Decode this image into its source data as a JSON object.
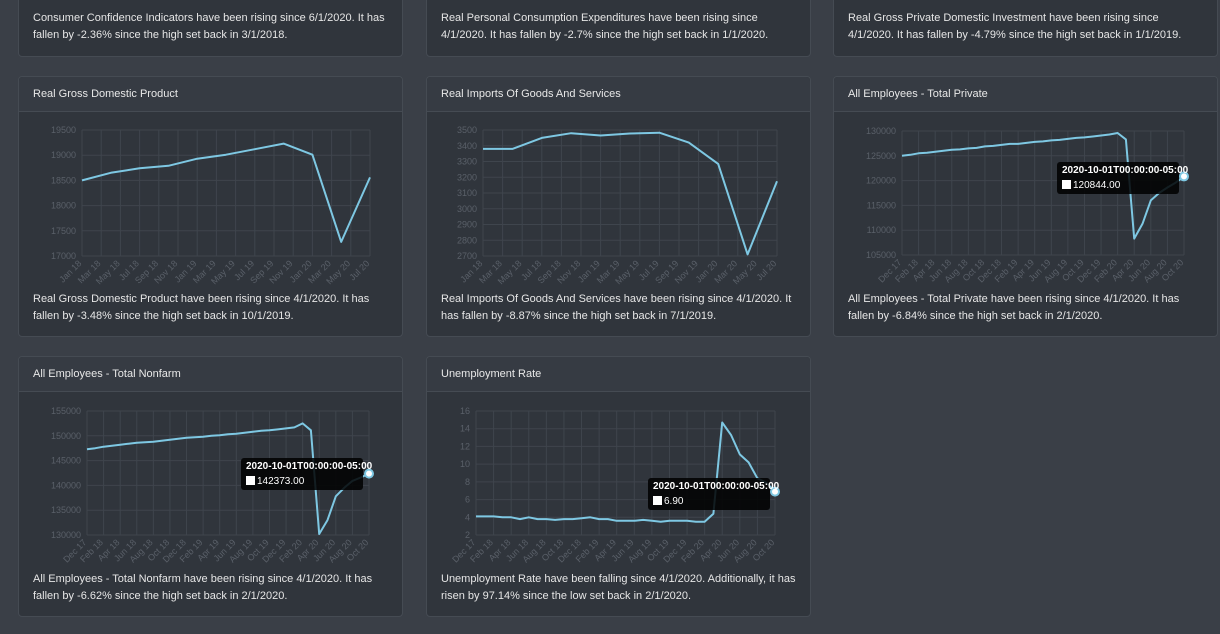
{
  "top_cards": [
    {
      "description": "Consumer Confidence Indicators have been rising since 6/1/2020. It has fallen by -2.36% since the high set back in 3/1/2018."
    },
    {
      "description": "Real Personal Consumption Expenditures have been rising since 4/1/2020. It has fallen by -2.7% since the high set back in 1/1/2020."
    },
    {
      "description": "Real Gross Private Domestic Investment have been rising since 4/1/2020. It has fallen by -4.79% since the high set back in 1/1/2019."
    }
  ],
  "chart_data": [
    {
      "type": "line",
      "title": "Real Gross Domestic Product",
      "description": "Real Gross Domestic Product have been rising since 4/1/2020. It has fallen by -3.48% since the high set back in 10/1/2019.",
      "x": [
        "Jan 18",
        "Apr 18",
        "Jul 18",
        "Oct 18",
        "Jan 19",
        "Apr 19",
        "Jul 19",
        "Oct 19",
        "Jan 20",
        "Apr 20",
        "Jul 20"
      ],
      "values": [
        18500,
        18650,
        18740,
        18790,
        18930,
        19010,
        19120,
        19230,
        19010,
        17280,
        18560
      ],
      "color": "#7ec8e3",
      "ylim": [
        17000,
        19500
      ],
      "yticks": [
        17000,
        17500,
        18000,
        18500,
        19000,
        19500
      ],
      "xticks": [
        "Jan 18",
        "Mar 18",
        "May 18",
        "Jul 18",
        "Sep 18",
        "Nov 18",
        "Jan 19",
        "Mar 19",
        "May 19",
        "Jul 19",
        "Sep 19",
        "Nov 19",
        "Jan 20",
        "Mar 20",
        "May 20",
        "Jul 20"
      ],
      "grid": true
    },
    {
      "type": "line",
      "title": "Real Imports Of Goods And Services",
      "description": "Real Imports Of Goods And Services have been rising since 4/1/2020. It has fallen by -8.87% since the high set back in 7/1/2019.",
      "x": [
        "Jan 18",
        "Apr 18",
        "Jul 18",
        "Oct 18",
        "Jan 19",
        "Apr 19",
        "Jul 19",
        "Oct 19",
        "Jan 20",
        "Apr 20",
        "Jul 20"
      ],
      "values": [
        3380,
        3380,
        3450,
        3480,
        3465,
        3478,
        3483,
        3420,
        3285,
        2710,
        3175
      ],
      "color": "#7ec8e3",
      "ylim": [
        2700,
        3500
      ],
      "yticks": [
        2700,
        2800,
        2900,
        3000,
        3100,
        3200,
        3300,
        3400,
        3500
      ],
      "xticks": [
        "Jan 18",
        "Mar 18",
        "May 18",
        "Jul 18",
        "Sep 18",
        "Nov 18",
        "Jan 19",
        "Mar 19",
        "May 19",
        "Jul 19",
        "Sep 19",
        "Nov 19",
        "Jan 20",
        "Mar 20",
        "May 20",
        "Jul 20"
      ],
      "grid": true
    },
    {
      "type": "line",
      "title": "All Employees - Total Private",
      "description": "All Employees - Total Private have been rising since 4/1/2020. It has fallen by -6.84% since the high set back in 2/1/2020.",
      "x": [
        "Dec 17",
        "Jan 18",
        "Feb 18",
        "Mar 18",
        "Apr 18",
        "May 18",
        "Jun 18",
        "Jul 18",
        "Aug 18",
        "Sep 18",
        "Oct 18",
        "Nov 18",
        "Dec 18",
        "Jan 19",
        "Feb 19",
        "Mar 19",
        "Apr 19",
        "May 19",
        "Jun 19",
        "Jul 19",
        "Aug 19",
        "Sep 19",
        "Oct 19",
        "Nov 19",
        "Dec 19",
        "Jan 20",
        "Feb 20",
        "Mar 20",
        "Apr 20",
        "May 20",
        "Jun 20",
        "Jul 20",
        "Aug 20",
        "Sep 20",
        "Oct 20"
      ],
      "values": [
        125000,
        125200,
        125500,
        125600,
        125800,
        126000,
        126200,
        126300,
        126500,
        126600,
        126900,
        127000,
        127200,
        127400,
        127400,
        127600,
        127800,
        127900,
        128100,
        128200,
        128400,
        128600,
        128700,
        128900,
        129100,
        129300,
        129600,
        128300,
        108300,
        111300,
        116000,
        117500,
        118600,
        119600,
        120844
      ],
      "color": "#7ec8e3",
      "ylim": [
        105000,
        130000
      ],
      "yticks": [
        105000,
        110000,
        115000,
        120000,
        125000,
        130000
      ],
      "xticks": [
        "Dec 17",
        "Feb 18",
        "Apr 18",
        "Jun 18",
        "Aug 18",
        "Oct 18",
        "Dec 18",
        "Feb 19",
        "Apr 19",
        "Jun 19",
        "Aug 19",
        "Oct 19",
        "Dec 19",
        "Feb 20",
        "Apr 20",
        "Jun 20",
        "Aug 20",
        "Oct 20"
      ],
      "grid": true,
      "tooltip": {
        "label": "2020-10-01T00:00:00-05:00",
        "text": "120844.00"
      }
    },
    {
      "type": "line",
      "title": "All Employees - Total Nonfarm",
      "description": "All Employees - Total Nonfarm have been rising since 4/1/2020. It has fallen by -6.62% since the high set back in 2/1/2020.",
      "x": [
        "Dec 17",
        "Jan 18",
        "Feb 18",
        "Mar 18",
        "Apr 18",
        "May 18",
        "Jun 18",
        "Jul 18",
        "Aug 18",
        "Sep 18",
        "Oct 18",
        "Nov 18",
        "Dec 18",
        "Jan 19",
        "Feb 19",
        "Mar 19",
        "Apr 19",
        "May 19",
        "Jun 19",
        "Jul 19",
        "Aug 19",
        "Sep 19",
        "Oct 19",
        "Nov 19",
        "Dec 19",
        "Jan 20",
        "Feb 20",
        "Mar 20",
        "Apr 20",
        "May 20",
        "Jun 20",
        "Jul 20",
        "Aug 20",
        "Sep 20",
        "Oct 20"
      ],
      "values": [
        147300,
        147500,
        147800,
        148000,
        148200,
        148400,
        148600,
        148700,
        148800,
        149000,
        149200,
        149400,
        149600,
        149700,
        149800,
        150000,
        150100,
        150300,
        150400,
        150600,
        150800,
        151000,
        151100,
        151300,
        151500,
        151700,
        152500,
        151100,
        130200,
        133000,
        137800,
        139500,
        140900,
        141600,
        142373
      ],
      "color": "#7ec8e3",
      "ylim": [
        130000,
        155000
      ],
      "yticks": [
        130000,
        135000,
        140000,
        145000,
        150000,
        155000
      ],
      "xticks": [
        "Dec 17",
        "Feb 18",
        "Apr 18",
        "Jun 18",
        "Aug 18",
        "Oct 18",
        "Dec 18",
        "Feb 19",
        "Apr 19",
        "Jun 19",
        "Aug 19",
        "Oct 19",
        "Dec 19",
        "Feb 20",
        "Apr 20",
        "Jun 20",
        "Aug 20",
        "Oct 20"
      ],
      "grid": true,
      "tooltip": {
        "label": "2020-10-01T00:00:00-05:00",
        "text": "142373.00"
      }
    },
    {
      "type": "line",
      "title": "Unemployment Rate",
      "description": "Unemployment Rate have been falling since 4/1/2020. Additionally, it has risen by 97.14% since the low set back in 2/1/2020.",
      "x": [
        "Dec 17",
        "Jan 18",
        "Feb 18",
        "Mar 18",
        "Apr 18",
        "May 18",
        "Jun 18",
        "Jul 18",
        "Aug 18",
        "Sep 18",
        "Oct 18",
        "Nov 18",
        "Dec 18",
        "Jan 19",
        "Feb 19",
        "Mar 19",
        "Apr 19",
        "May 19",
        "Jun 19",
        "Jul 19",
        "Aug 19",
        "Sep 19",
        "Oct 19",
        "Nov 19",
        "Dec 19",
        "Jan 20",
        "Feb 20",
        "Mar 20",
        "Apr 20",
        "May 20",
        "Jun 20",
        "Jul 20",
        "Aug 20",
        "Sep 20",
        "Oct 20"
      ],
      "values": [
        4.1,
        4.1,
        4.1,
        4.0,
        4.0,
        3.8,
        4.0,
        3.8,
        3.8,
        3.7,
        3.8,
        3.8,
        3.9,
        4.0,
        3.8,
        3.8,
        3.6,
        3.6,
        3.6,
        3.7,
        3.6,
        3.5,
        3.6,
        3.6,
        3.6,
        3.5,
        3.5,
        4.4,
        14.7,
        13.3,
        11.1,
        10.2,
        8.4,
        7.9,
        6.9
      ],
      "color": "#7ec8e3",
      "ylim": [
        2,
        16
      ],
      "yticks": [
        2,
        4,
        6,
        8,
        10,
        12,
        14,
        16
      ],
      "xticks": [
        "Dec 17",
        "Feb 18",
        "Apr 18",
        "Jun 18",
        "Aug 18",
        "Oct 18",
        "Dec 18",
        "Feb 19",
        "Apr 19",
        "Jun 19",
        "Aug 19",
        "Oct 19",
        "Dec 19",
        "Feb 20",
        "Apr 20",
        "Jun 20",
        "Aug 20",
        "Oct 20"
      ],
      "grid": true,
      "tooltip": {
        "label": "2020-10-01T00:00:00-05:00",
        "text": "6.90"
      }
    }
  ]
}
